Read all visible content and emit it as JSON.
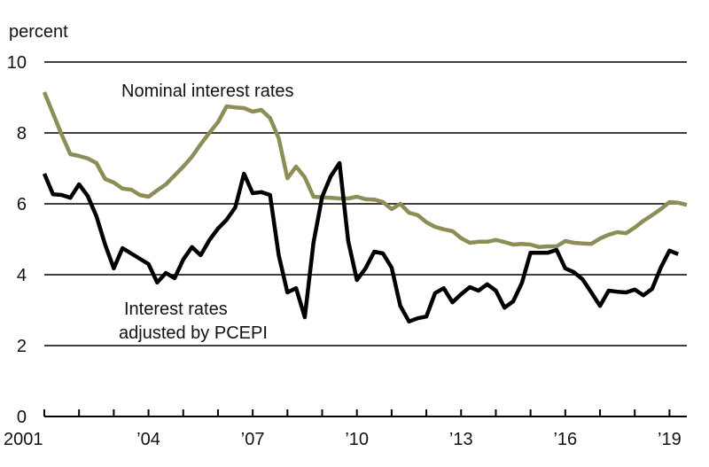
{
  "chart_data": {
    "type": "line",
    "title": "",
    "ylabel": "percent",
    "xlabel": "",
    "ylim": [
      0,
      10
    ],
    "yticks": [
      0,
      2,
      4,
      6,
      8,
      10
    ],
    "xlim": [
      2001.0,
      2019.5
    ],
    "xtick_labels": [
      {
        "x": 2001,
        "label": "2001"
      },
      {
        "x": 2004,
        "label": "’04"
      },
      {
        "x": 2007,
        "label": "’07"
      },
      {
        "x": 2010,
        "label": "’10"
      },
      {
        "x": 2013,
        "label": "’13"
      },
      {
        "x": 2016,
        "label": "’16"
      },
      {
        "x": 2019,
        "label": "’19"
      }
    ],
    "grid": true,
    "series": [
      {
        "name": "Nominal interest rates",
        "color": "#8c8d57",
        "points": [
          [
            2001.0,
            9.15
          ],
          [
            2001.25,
            8.55
          ],
          [
            2001.5,
            7.95
          ],
          [
            2001.75,
            7.4
          ],
          [
            2002.0,
            7.35
          ],
          [
            2002.25,
            7.28
          ],
          [
            2002.5,
            7.15
          ],
          [
            2002.75,
            6.7
          ],
          [
            2003.0,
            6.6
          ],
          [
            2003.25,
            6.43
          ],
          [
            2003.5,
            6.4
          ],
          [
            2003.75,
            6.25
          ],
          [
            2004.0,
            6.2
          ],
          [
            2004.25,
            6.38
          ],
          [
            2004.5,
            6.55
          ],
          [
            2004.75,
            6.8
          ],
          [
            2005.0,
            7.05
          ],
          [
            2005.25,
            7.33
          ],
          [
            2005.5,
            7.68
          ],
          [
            2005.75,
            8.0
          ],
          [
            2006.0,
            8.3
          ],
          [
            2006.25,
            8.75
          ],
          [
            2006.5,
            8.72
          ],
          [
            2006.75,
            8.7
          ],
          [
            2007.0,
            8.6
          ],
          [
            2007.25,
            8.65
          ],
          [
            2007.5,
            8.42
          ],
          [
            2007.75,
            7.85
          ],
          [
            2008.0,
            6.72
          ],
          [
            2008.25,
            7.05
          ],
          [
            2008.5,
            6.75
          ],
          [
            2008.75,
            6.2
          ],
          [
            2009.0,
            6.18
          ],
          [
            2009.25,
            6.17
          ],
          [
            2009.5,
            6.15
          ],
          [
            2009.75,
            6.15
          ],
          [
            2010.0,
            6.2
          ],
          [
            2010.25,
            6.13
          ],
          [
            2010.5,
            6.12
          ],
          [
            2010.75,
            6.05
          ],
          [
            2011.0,
            5.85
          ],
          [
            2011.25,
            6.0
          ],
          [
            2011.5,
            5.75
          ],
          [
            2011.75,
            5.68
          ],
          [
            2012.0,
            5.48
          ],
          [
            2012.25,
            5.35
          ],
          [
            2012.5,
            5.28
          ],
          [
            2012.75,
            5.23
          ],
          [
            2013.0,
            5.03
          ],
          [
            2013.25,
            4.9
          ],
          [
            2013.5,
            4.93
          ],
          [
            2013.75,
            4.93
          ],
          [
            2014.0,
            4.98
          ],
          [
            2014.25,
            4.92
          ],
          [
            2014.5,
            4.85
          ],
          [
            2014.75,
            4.87
          ],
          [
            2015.0,
            4.85
          ],
          [
            2015.25,
            4.78
          ],
          [
            2015.5,
            4.8
          ],
          [
            2015.75,
            4.8
          ],
          [
            2016.0,
            4.95
          ],
          [
            2016.25,
            4.9
          ],
          [
            2016.5,
            4.88
          ],
          [
            2016.75,
            4.87
          ],
          [
            2017.0,
            5.02
          ],
          [
            2017.25,
            5.13
          ],
          [
            2017.5,
            5.2
          ],
          [
            2017.75,
            5.17
          ],
          [
            2018.0,
            5.33
          ],
          [
            2018.25,
            5.52
          ],
          [
            2018.5,
            5.68
          ],
          [
            2018.75,
            5.85
          ],
          [
            2019.0,
            6.05
          ],
          [
            2019.25,
            6.03
          ],
          [
            2019.5,
            5.97
          ]
        ]
      },
      {
        "name": "Interest rates adjusted by PCEPI",
        "color": "#000000",
        "points": [
          [
            2001.0,
            6.85
          ],
          [
            2001.25,
            6.27
          ],
          [
            2001.5,
            6.25
          ],
          [
            2001.75,
            6.17
          ],
          [
            2002.0,
            6.55
          ],
          [
            2002.25,
            6.22
          ],
          [
            2002.5,
            5.65
          ],
          [
            2002.75,
            4.85
          ],
          [
            2003.0,
            4.18
          ],
          [
            2003.25,
            4.75
          ],
          [
            2003.5,
            4.6
          ],
          [
            2003.75,
            4.45
          ],
          [
            2004.0,
            4.3
          ],
          [
            2004.25,
            3.78
          ],
          [
            2004.5,
            4.05
          ],
          [
            2004.75,
            3.9
          ],
          [
            2005.0,
            4.43
          ],
          [
            2005.25,
            4.78
          ],
          [
            2005.5,
            4.55
          ],
          [
            2005.75,
            4.97
          ],
          [
            2006.0,
            5.3
          ],
          [
            2006.25,
            5.55
          ],
          [
            2006.5,
            5.9
          ],
          [
            2006.75,
            6.85
          ],
          [
            2007.0,
            6.3
          ],
          [
            2007.25,
            6.33
          ],
          [
            2007.5,
            6.25
          ],
          [
            2007.75,
            4.55
          ],
          [
            2008.0,
            3.5
          ],
          [
            2008.25,
            3.62
          ],
          [
            2008.5,
            2.8
          ],
          [
            2008.75,
            4.9
          ],
          [
            2009.0,
            6.2
          ],
          [
            2009.25,
            6.78
          ],
          [
            2009.5,
            7.15
          ],
          [
            2009.75,
            4.95
          ],
          [
            2010.0,
            3.85
          ],
          [
            2010.25,
            4.18
          ],
          [
            2010.5,
            4.65
          ],
          [
            2010.75,
            4.6
          ],
          [
            2011.0,
            4.2
          ],
          [
            2011.25,
            3.12
          ],
          [
            2011.5,
            2.68
          ],
          [
            2011.75,
            2.77
          ],
          [
            2012.0,
            2.82
          ],
          [
            2012.25,
            3.48
          ],
          [
            2012.5,
            3.62
          ],
          [
            2012.75,
            3.22
          ],
          [
            2013.0,
            3.45
          ],
          [
            2013.25,
            3.65
          ],
          [
            2013.5,
            3.55
          ],
          [
            2013.75,
            3.73
          ],
          [
            2014.0,
            3.55
          ],
          [
            2014.25,
            3.07
          ],
          [
            2014.5,
            3.25
          ],
          [
            2014.75,
            3.77
          ],
          [
            2015.0,
            4.62
          ],
          [
            2015.25,
            4.62
          ],
          [
            2015.5,
            4.62
          ],
          [
            2015.75,
            4.7
          ],
          [
            2016.0,
            4.18
          ],
          [
            2016.25,
            4.07
          ],
          [
            2016.5,
            3.87
          ],
          [
            2016.75,
            3.5
          ],
          [
            2017.0,
            3.12
          ],
          [
            2017.25,
            3.55
          ],
          [
            2017.5,
            3.52
          ],
          [
            2017.75,
            3.5
          ],
          [
            2018.0,
            3.58
          ],
          [
            2018.25,
            3.42
          ],
          [
            2018.5,
            3.6
          ],
          [
            2018.75,
            4.2
          ],
          [
            2019.0,
            4.68
          ],
          [
            2019.25,
            4.58
          ]
        ]
      }
    ],
    "annotations": {
      "nominal": "Nominal interest rates",
      "real_line1": "Interest rates",
      "real_line2": "adjusted by PCEPI"
    }
  }
}
